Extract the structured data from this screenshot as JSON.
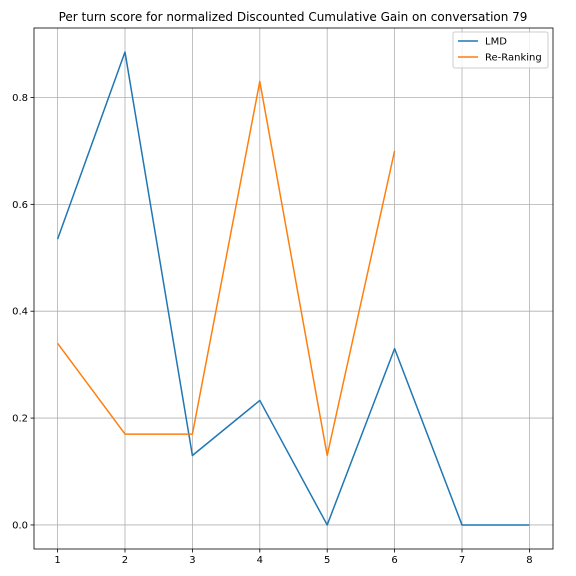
{
  "chart_data": {
    "type": "line",
    "title": "Per turn score for normalized Discounted Cumulative Gain on conversation 79",
    "xlabel": "",
    "ylabel": "",
    "x": [
      1,
      2,
      3,
      4,
      5,
      6,
      7,
      8
    ],
    "xlim": [
      0.65,
      8.35
    ],
    "ylim": [
      -0.045,
      0.93
    ],
    "xticks": [
      "1",
      "2",
      "3",
      "4",
      "5",
      "6",
      "7",
      "8"
    ],
    "yticks": [
      "0.0",
      "0.2",
      "0.4",
      "0.6",
      "0.8"
    ],
    "grid": true,
    "legend_position": "top-right",
    "series": [
      {
        "name": "LMD",
        "color": "#1f77b4",
        "x": [
          1,
          2,
          3,
          4,
          5,
          6,
          7,
          8
        ],
        "values": [
          0.535,
          0.885,
          0.13,
          0.233,
          0.0,
          0.33,
          0.0,
          0.0
        ]
      },
      {
        "name": "Re-Ranking",
        "color": "#ff7f0e",
        "x": [
          1,
          2,
          3,
          4,
          5,
          6
        ],
        "values": [
          0.34,
          0.17,
          0.17,
          0.83,
          0.13,
          0.7
        ]
      }
    ]
  }
}
